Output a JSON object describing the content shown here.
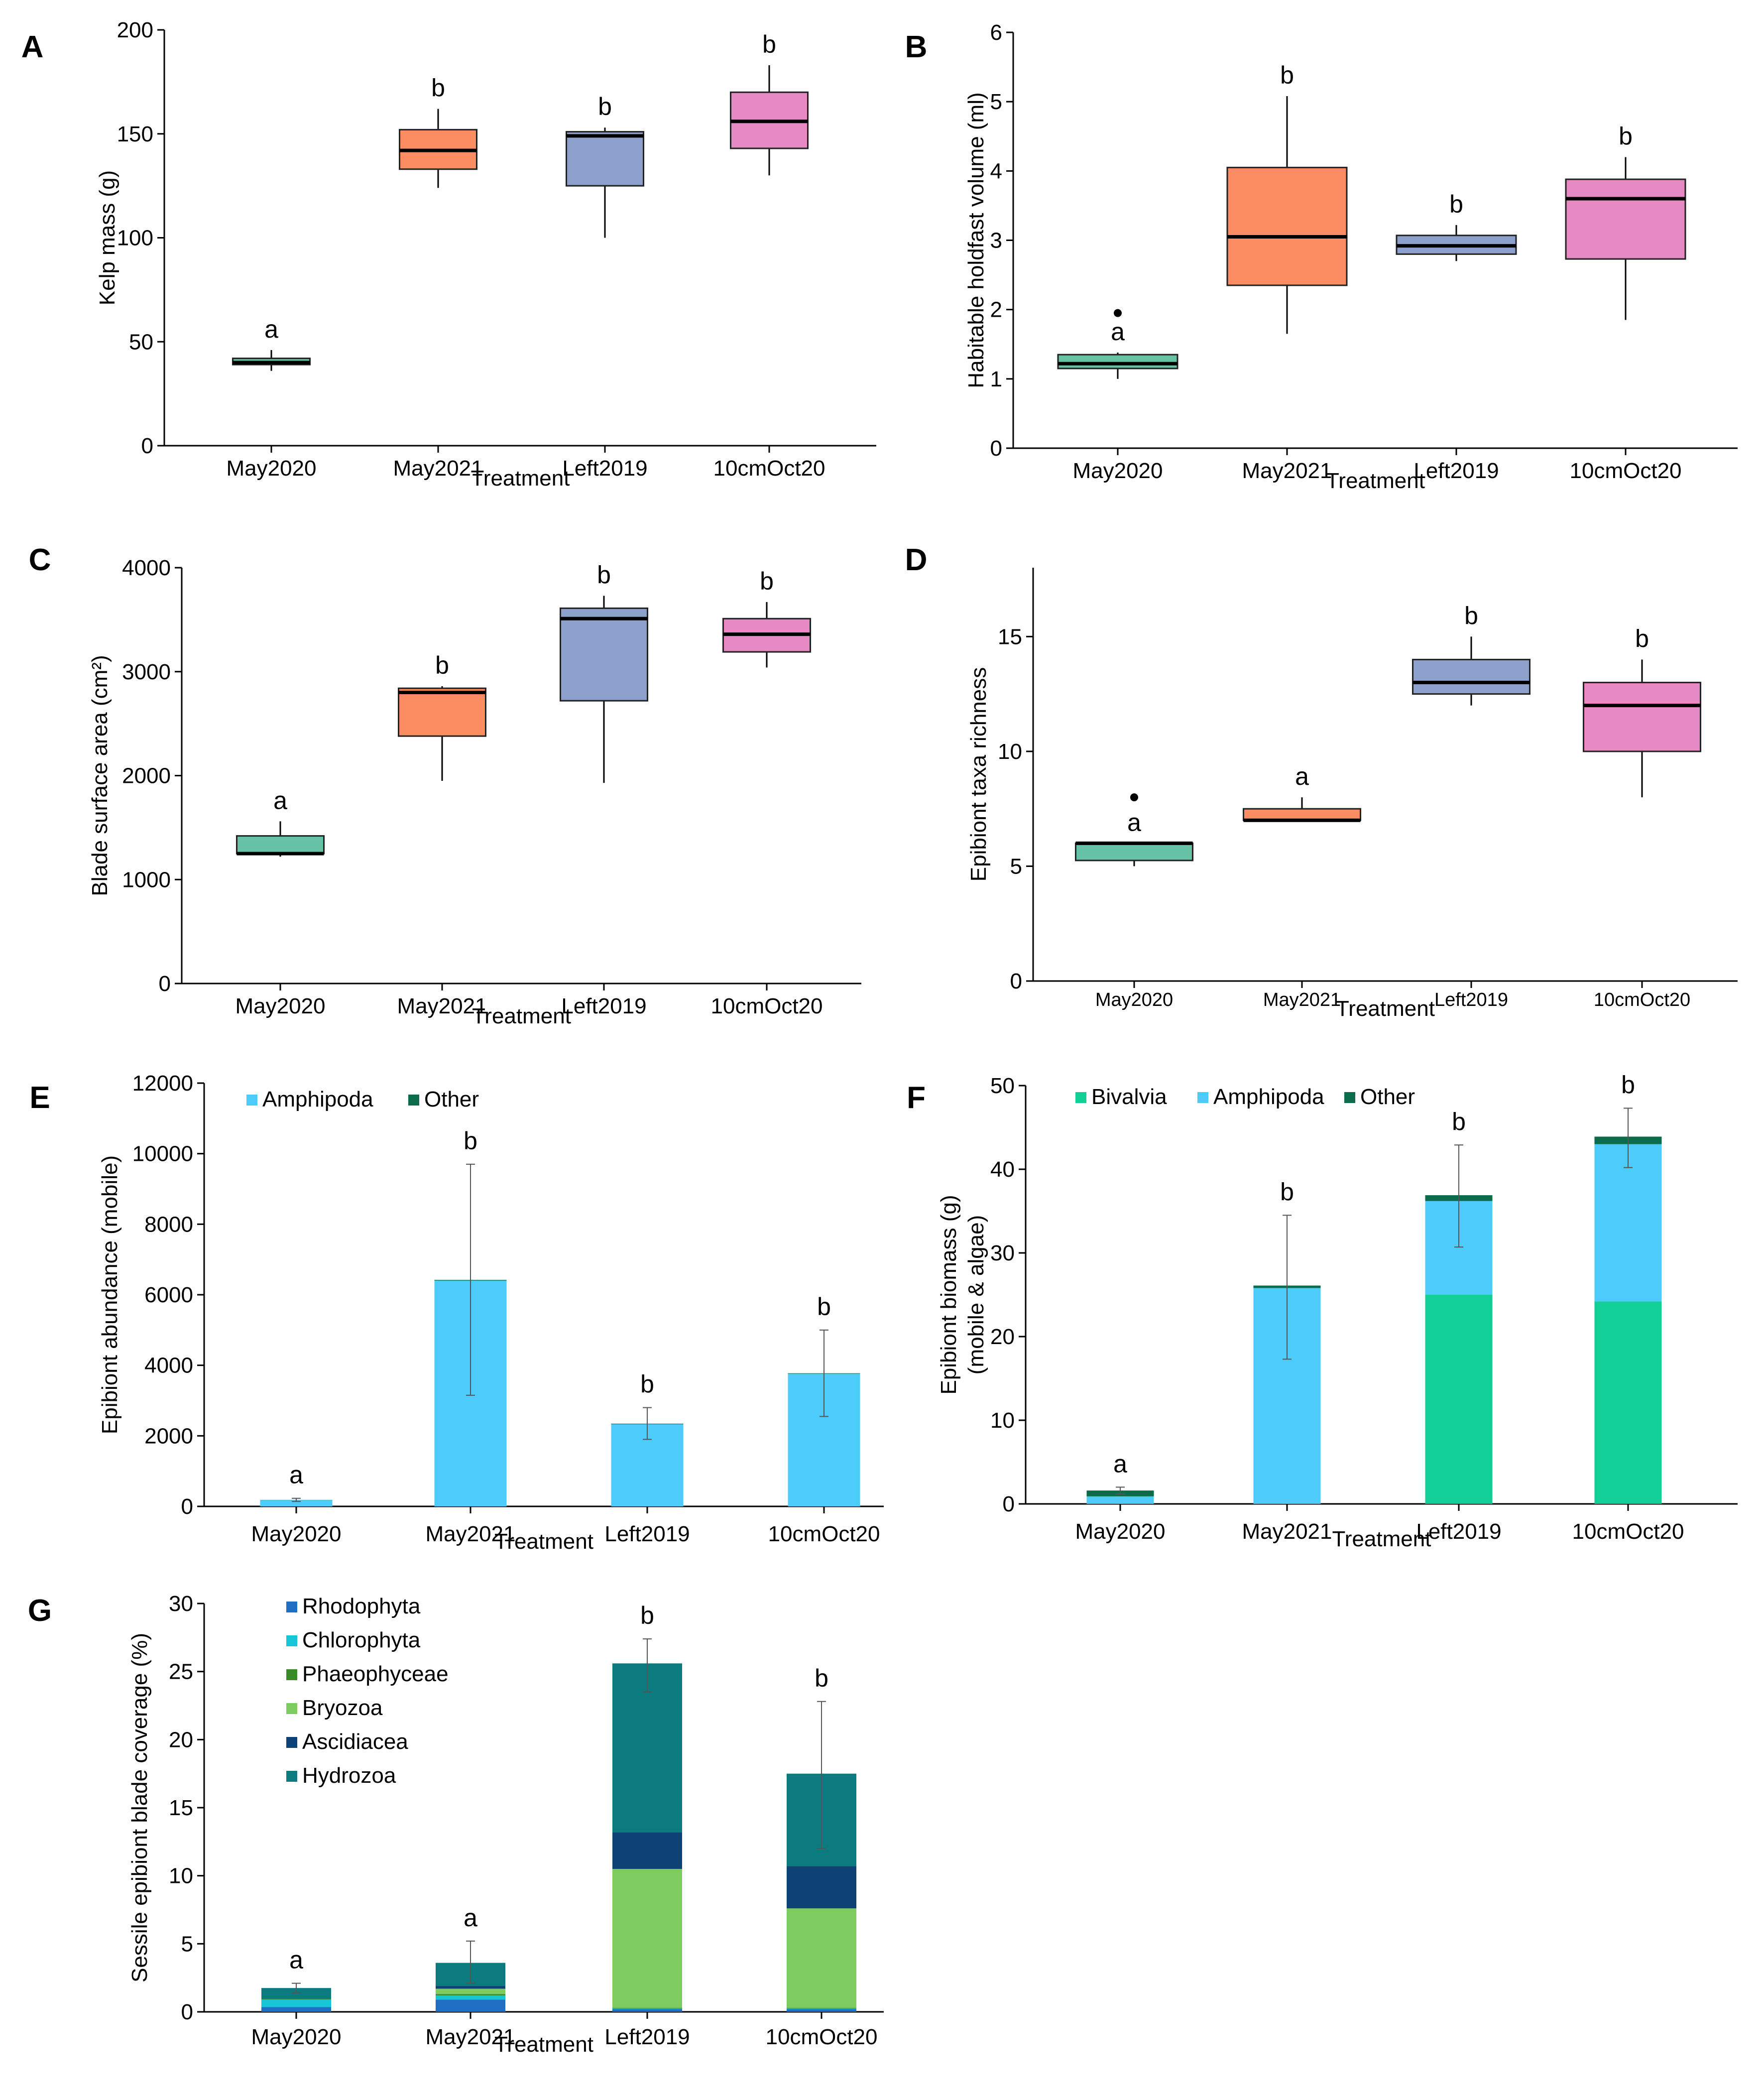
{
  "chart_data": [
    {
      "panel": "A",
      "type": "box",
      "xlabel": "Treatment",
      "ylabel": "Kelp mass (g)",
      "ylim": [
        0,
        200
      ],
      "yticks": [
        0,
        50,
        100,
        150,
        200
      ],
      "categories": [
        "May2020",
        "May2021",
        "Left2019",
        "10cmOct20"
      ],
      "boxes": [
        {
          "min": 36,
          "q1": 39,
          "median": 40,
          "q3": 42,
          "max": 46,
          "color": "#66c2a5"
        },
        {
          "min": 124,
          "q1": 133,
          "median": 142,
          "q3": 152,
          "max": 162,
          "color": "#fc8d62"
        },
        {
          "min": 100,
          "q1": 125,
          "median": 149,
          "q3": 151,
          "max": 153,
          "color": "#8da0cb"
        },
        {
          "min": 130,
          "q1": 143,
          "median": 156,
          "q3": 170,
          "max": 183,
          "color": "#e78ac3"
        }
      ],
      "outliers": [
        [],
        [],
        [],
        []
      ],
      "letters": [
        "a",
        "b",
        "b",
        "b"
      ]
    },
    {
      "panel": "B",
      "type": "box",
      "xlabel": "Treatment",
      "ylabel": "Habitable holdfast volume (ml)",
      "ylim": [
        0,
        6
      ],
      "yticks": [
        0,
        1,
        2,
        3,
        4,
        5,
        6
      ],
      "categories": [
        "May2020",
        "May2021",
        "Left2019",
        "10cmOct20"
      ],
      "boxes": [
        {
          "min": 1.0,
          "q1": 1.15,
          "median": 1.22,
          "q3": 1.35,
          "max": 1.38,
          "color": "#66c2a5"
        },
        {
          "min": 1.65,
          "q1": 2.35,
          "median": 3.05,
          "q3": 4.05,
          "max": 5.08,
          "color": "#fc8d62"
        },
        {
          "min": 2.7,
          "q1": 2.8,
          "median": 2.92,
          "q3": 3.07,
          "max": 3.22,
          "color": "#8da0cb"
        },
        {
          "min": 1.85,
          "q1": 2.73,
          "median": 3.6,
          "q3": 3.88,
          "max": 4.2,
          "color": "#e78ac3"
        }
      ],
      "outliers": [
        [
          1.95
        ],
        [],
        [],
        []
      ],
      "letters": [
        "a",
        "b",
        "b",
        "b"
      ]
    },
    {
      "panel": "C",
      "type": "box",
      "xlabel": "Treatment",
      "ylabel": "Blade surface area (cm²)",
      "ylim": [
        0,
        4000
      ],
      "yticks": [
        0,
        1000,
        2000,
        3000,
        4000
      ],
      "categories": [
        "May2020",
        "May2021",
        "Left2019",
        "10cmOct20"
      ],
      "boxes": [
        {
          "min": 1220,
          "q1": 1250,
          "median": 1250,
          "q3": 1420,
          "max": 1560,
          "color": "#66c2a5"
        },
        {
          "min": 1950,
          "q1": 2380,
          "median": 2800,
          "q3": 2840,
          "max": 2860,
          "color": "#fc8d62"
        },
        {
          "min": 1930,
          "q1": 2720,
          "median": 3510,
          "q3": 3610,
          "max": 3730,
          "color": "#8da0cb"
        },
        {
          "min": 3040,
          "q1": 3190,
          "median": 3360,
          "q3": 3510,
          "max": 3670,
          "color": "#e78ac3"
        }
      ],
      "outliers": [
        [],
        [],
        [],
        []
      ],
      "letters": [
        "a",
        "b",
        "b",
        "b"
      ]
    },
    {
      "panel": "D",
      "type": "box",
      "xlabel": "Treatment",
      "ylabel": "Epibiont taxa richness",
      "ylim": [
        0,
        18
      ],
      "yticks": [
        0,
        5,
        10,
        15
      ],
      "categories": [
        "May2020",
        "May2021",
        "Left2019",
        "10cmOct20"
      ],
      "boxes": [
        {
          "min": 5,
          "q1": 5.25,
          "median": 6,
          "q3": 6,
          "max": 6,
          "color": "#66c2a5"
        },
        {
          "min": 7,
          "q1": 7,
          "median": 7,
          "q3": 7.5,
          "max": 8,
          "color": "#fc8d62"
        },
        {
          "min": 12,
          "q1": 12.5,
          "median": 13,
          "q3": 14,
          "max": 15,
          "color": "#8da0cb"
        },
        {
          "min": 8,
          "q1": 10,
          "median": 12,
          "q3": 13,
          "max": 14,
          "color": "#e78ac3"
        }
      ],
      "outliers": [
        [
          8
        ],
        [],
        [],
        []
      ],
      "letters": [
        "a",
        "a",
        "b",
        "b"
      ]
    },
    {
      "panel": "E",
      "type": "bar",
      "stacked": true,
      "xlabel": "Treatment",
      "ylabel": "Epibiont abundance (mobile)",
      "ylim": [
        0,
        12000
      ],
      "yticks": [
        0,
        2000,
        4000,
        6000,
        8000,
        10000,
        12000
      ],
      "categories": [
        "May2020",
        "May2021",
        "Left2019",
        "10cmOct20"
      ],
      "series": [
        {
          "name": "Amphipoda",
          "color": "#4dccfc",
          "values": [
            180,
            6400,
            2330,
            3760
          ]
        },
        {
          "name": "Other",
          "color": "#0b6b4a",
          "values": [
            5,
            20,
            15,
            15
          ]
        }
      ],
      "errors": [
        [
          140,
          230
        ],
        [
          3150,
          9700
        ],
        [
          1900,
          2800
        ],
        [
          2550,
          5000
        ]
      ],
      "letters": [
        "a",
        "b",
        "b",
        "b"
      ]
    },
    {
      "panel": "F",
      "type": "bar",
      "stacked": true,
      "xlabel": "Treatment",
      "ylabel": "Epibiont biomass (g)",
      "ylabel2": "(mobile & algae)",
      "ylim": [
        0,
        50
      ],
      "yticks": [
        0,
        10,
        20,
        30,
        40,
        50
      ],
      "categories": [
        "May2020",
        "May2021",
        "Left2019",
        "10cmOct20"
      ],
      "series": [
        {
          "name": "Bivalvia",
          "color": "#12cf98",
          "values": [
            0,
            0,
            25,
            24.2
          ]
        },
        {
          "name": "Amphipoda",
          "color": "#4dccfc",
          "values": [
            0.9,
            25.8,
            11.2,
            18.8
          ]
        },
        {
          "name": "Other",
          "color": "#0b6b4a",
          "values": [
            0.7,
            0.3,
            0.7,
            0.9
          ]
        }
      ],
      "errors": [
        [
          1.2,
          2.0
        ],
        [
          17.3,
          34.5
        ],
        [
          30.7,
          42.9
        ],
        [
          40.2,
          47.3
        ]
      ],
      "letters": [
        "a",
        "b",
        "b",
        "b"
      ]
    },
    {
      "panel": "G",
      "type": "bar",
      "stacked": true,
      "xlabel": "Treatment",
      "ylabel": "Sessile epibiont blade coverage (%)",
      "ylim": [
        0,
        30
      ],
      "yticks": [
        0,
        5,
        10,
        15,
        20,
        25,
        30
      ],
      "categories": [
        "May2020",
        "May2021",
        "Left2019",
        "10cmOct20"
      ],
      "series": [
        {
          "name": "Rhodophyta",
          "color": "#1e6fc4",
          "values": [
            0.35,
            0.9,
            0.2,
            0.2
          ]
        },
        {
          "name": "Chlorophyta",
          "color": "#17c6d6",
          "values": [
            0.55,
            0.3,
            0.05,
            0.05
          ]
        },
        {
          "name": "Phaeophyceae",
          "color": "#3a8a2a",
          "values": [
            0.05,
            0.1,
            0.05,
            0.05
          ]
        },
        {
          "name": "Bryozoa",
          "color": "#7ecc60",
          "values": [
            0,
            0.4,
            10.2,
            7.3
          ]
        },
        {
          "name": "Ascidiacea",
          "color": "#0e4275",
          "values": [
            0,
            0.2,
            2.7,
            3.1
          ]
        },
        {
          "name": "Hydrozoa",
          "color": "#0c7b80",
          "values": [
            0.8,
            1.7,
            12.4,
            6.8
          ]
        }
      ],
      "errors": [
        [
          1.4,
          2.1
        ],
        [
          2.1,
          5.2
        ],
        [
          23.5,
          27.4
        ],
        [
          12.0,
          22.8
        ]
      ],
      "letters": [
        "a",
        "a",
        "b",
        "b"
      ]
    }
  ]
}
